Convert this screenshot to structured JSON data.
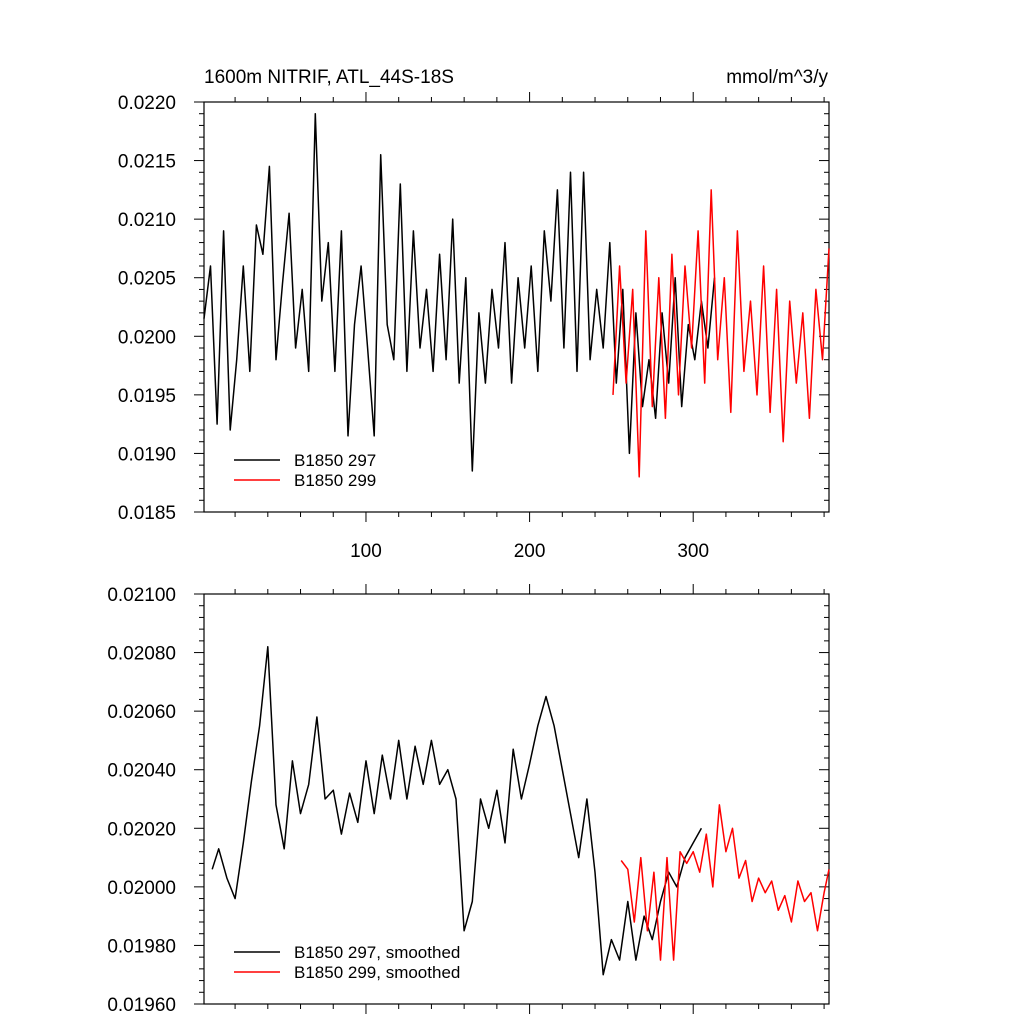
{
  "chart_data": [
    {
      "type": "line",
      "title": "1600m NITRIF, ATL_44S-18S",
      "units": "mmol/m^3/y",
      "xlim": [
        1,
        383
      ],
      "ylim": [
        0.0185,
        0.022
      ],
      "xticks": [
        100,
        200,
        300
      ],
      "xtick_labels": [
        "100",
        "200",
        "300"
      ],
      "yticks": [
        0.0185,
        0.019,
        0.0195,
        0.02,
        0.0205,
        0.021,
        0.0215,
        0.022
      ],
      "ytick_labels": [
        "0.0185",
        "0.0190",
        "0.0195",
        "0.0200",
        "0.0205",
        "0.0210",
        "0.0215",
        "0.0220"
      ],
      "grid": false,
      "legend_position": "bottom-left",
      "series": [
        {
          "name": "B1850 297",
          "color": "#000000",
          "x": [
            1,
            5,
            9,
            13,
            17,
            21,
            25,
            29,
            33,
            37,
            41,
            45,
            49,
            53,
            57,
            61,
            65,
            69,
            73,
            77,
            81,
            85,
            89,
            93,
            97,
            101,
            105,
            109,
            113,
            117,
            121,
            125,
            129,
            133,
            137,
            141,
            145,
            149,
            153,
            157,
            161,
            165,
            169,
            173,
            177,
            181,
            185,
            189,
            193,
            197,
            201,
            205,
            209,
            213,
            217,
            221,
            225,
            229,
            233,
            237,
            241,
            245,
            249,
            253,
            257,
            261,
            265,
            269,
            273,
            277,
            281,
            285,
            289,
            293,
            297,
            301,
            305,
            309,
            313
          ],
          "values": [
            0.02015,
            0.0206,
            0.01925,
            0.0209,
            0.0192,
            0.0198,
            0.0206,
            0.0197,
            0.02095,
            0.0207,
            0.02145,
            0.0198,
            0.02045,
            0.02105,
            0.0199,
            0.0204,
            0.0197,
            0.0219,
            0.0203,
            0.0208,
            0.0197,
            0.0209,
            0.01915,
            0.0201,
            0.0206,
            0.0199,
            0.01915,
            0.02155,
            0.0201,
            0.0198,
            0.0213,
            0.0197,
            0.0209,
            0.0199,
            0.0204,
            0.0197,
            0.0207,
            0.0198,
            0.021,
            0.0196,
            0.0205,
            0.01885,
            0.0202,
            0.0196,
            0.0204,
            0.0199,
            0.0208,
            0.0196,
            0.0205,
            0.0199,
            0.0206,
            0.0197,
            0.0209,
            0.0203,
            0.02125,
            0.0199,
            0.0214,
            0.0197,
            0.0214,
            0.0198,
            0.0204,
            0.0199,
            0.0208,
            0.0196,
            0.0204,
            0.019,
            0.0202,
            0.0194,
            0.0198,
            0.0193,
            0.0202,
            0.0196,
            0.0205,
            0.0194,
            0.0201,
            0.0198,
            0.0203,
            0.0199,
            0.0205
          ]
        },
        {
          "name": "B1850 299",
          "color": "#ff0000",
          "x": [
            251,
            255,
            259,
            263,
            267,
            271,
            275,
            279,
            283,
            287,
            291,
            295,
            299,
            303,
            307,
            311,
            315,
            319,
            323,
            327,
            331,
            335,
            339,
            343,
            347,
            351,
            355,
            359,
            363,
            367,
            371,
            375,
            379,
            383
          ],
          "values": [
            0.0195,
            0.0206,
            0.0196,
            0.0204,
            0.0188,
            0.0209,
            0.0194,
            0.0205,
            0.0193,
            0.0207,
            0.0195,
            0.0206,
            0.0199,
            0.0209,
            0.0196,
            0.02125,
            0.0198,
            0.0205,
            0.01935,
            0.0209,
            0.0197,
            0.0203,
            0.0195,
            0.0206,
            0.01935,
            0.0204,
            0.0191,
            0.0203,
            0.0196,
            0.0202,
            0.0193,
            0.0204,
            0.0198,
            0.02075
          ]
        }
      ],
      "legend": [
        {
          "label": "B1850 297",
          "color": "#000000"
        },
        {
          "label": "B1850 299",
          "color": "#ff0000"
        }
      ]
    },
    {
      "type": "line",
      "title": "",
      "xlim": [
        1,
        383
      ],
      "ylim": [
        0.0196,
        0.021
      ],
      "yticks": [
        0.0196,
        0.0198,
        0.02,
        0.0202,
        0.0204,
        0.0206,
        0.0208,
        0.021
      ],
      "ytick_labels": [
        "0.01960",
        "0.01980",
        "0.02000",
        "0.02020",
        "0.02040",
        "0.02060",
        "0.02080",
        "0.02100"
      ],
      "xticks": [
        100,
        200,
        300
      ],
      "xtick_labels": [],
      "grid": false,
      "legend_position": "bottom-left",
      "series": [
        {
          "name": "B1850 297, smoothed",
          "color": "#000000",
          "x": [
            6,
            10,
            15,
            20,
            25,
            30,
            35,
            40,
            45,
            50,
            55,
            60,
            65,
            70,
            75,
            80,
            85,
            90,
            95,
            100,
            105,
            110,
            115,
            120,
            125,
            130,
            135,
            140,
            145,
            150,
            155,
            160,
            165,
            170,
            175,
            180,
            185,
            190,
            195,
            200,
            205,
            210,
            215,
            220,
            225,
            230,
            235,
            240,
            245,
            250,
            255,
            260,
            265,
            270,
            275,
            280,
            285,
            290,
            295,
            300,
            305
          ],
          "values": [
            0.02006,
            0.02013,
            0.02003,
            0.01996,
            0.02015,
            0.02036,
            0.02055,
            0.02082,
            0.02028,
            0.02013,
            0.02043,
            0.02025,
            0.02035,
            0.02058,
            0.0203,
            0.02033,
            0.02018,
            0.02032,
            0.02022,
            0.02043,
            0.02025,
            0.02045,
            0.0203,
            0.0205,
            0.0203,
            0.02048,
            0.02035,
            0.0205,
            0.02035,
            0.0204,
            0.0203,
            0.01985,
            0.01995,
            0.0203,
            0.0202,
            0.02033,
            0.02015,
            0.02047,
            0.0203,
            0.02042,
            0.02055,
            0.02065,
            0.02055,
            0.0204,
            0.02025,
            0.0201,
            0.0203,
            0.02005,
            0.0197,
            0.01982,
            0.01975,
            0.01995,
            0.01975,
            0.0199,
            0.01982,
            0.01995,
            0.02005,
            0.02,
            0.0201,
            0.02015,
            0.0202
          ]
        },
        {
          "name": "B1850 299, smoothed",
          "color": "#ff0000",
          "x": [
            256,
            260,
            264,
            268,
            272,
            276,
            280,
            284,
            288,
            292,
            296,
            300,
            304,
            308,
            312,
            316,
            320,
            324,
            328,
            332,
            336,
            340,
            344,
            348,
            352,
            356,
            360,
            364,
            368,
            372,
            376,
            380,
            383
          ],
          "values": [
            0.02009,
            0.02006,
            0.01988,
            0.0201,
            0.01985,
            0.02005,
            0.01975,
            0.0201,
            0.01975,
            0.02012,
            0.02008,
            0.02012,
            0.02005,
            0.02018,
            0.02,
            0.02028,
            0.02012,
            0.0202,
            0.02003,
            0.02009,
            0.01995,
            0.02003,
            0.01998,
            0.02002,
            0.01992,
            0.01997,
            0.01988,
            0.02002,
            0.01995,
            0.01998,
            0.01985,
            0.01998,
            0.02006
          ]
        }
      ],
      "legend": [
        {
          "label": "B1850 297, smoothed",
          "color": "#000000"
        },
        {
          "label": "B1850 299, smoothed",
          "color": "#ff0000"
        }
      ]
    }
  ]
}
